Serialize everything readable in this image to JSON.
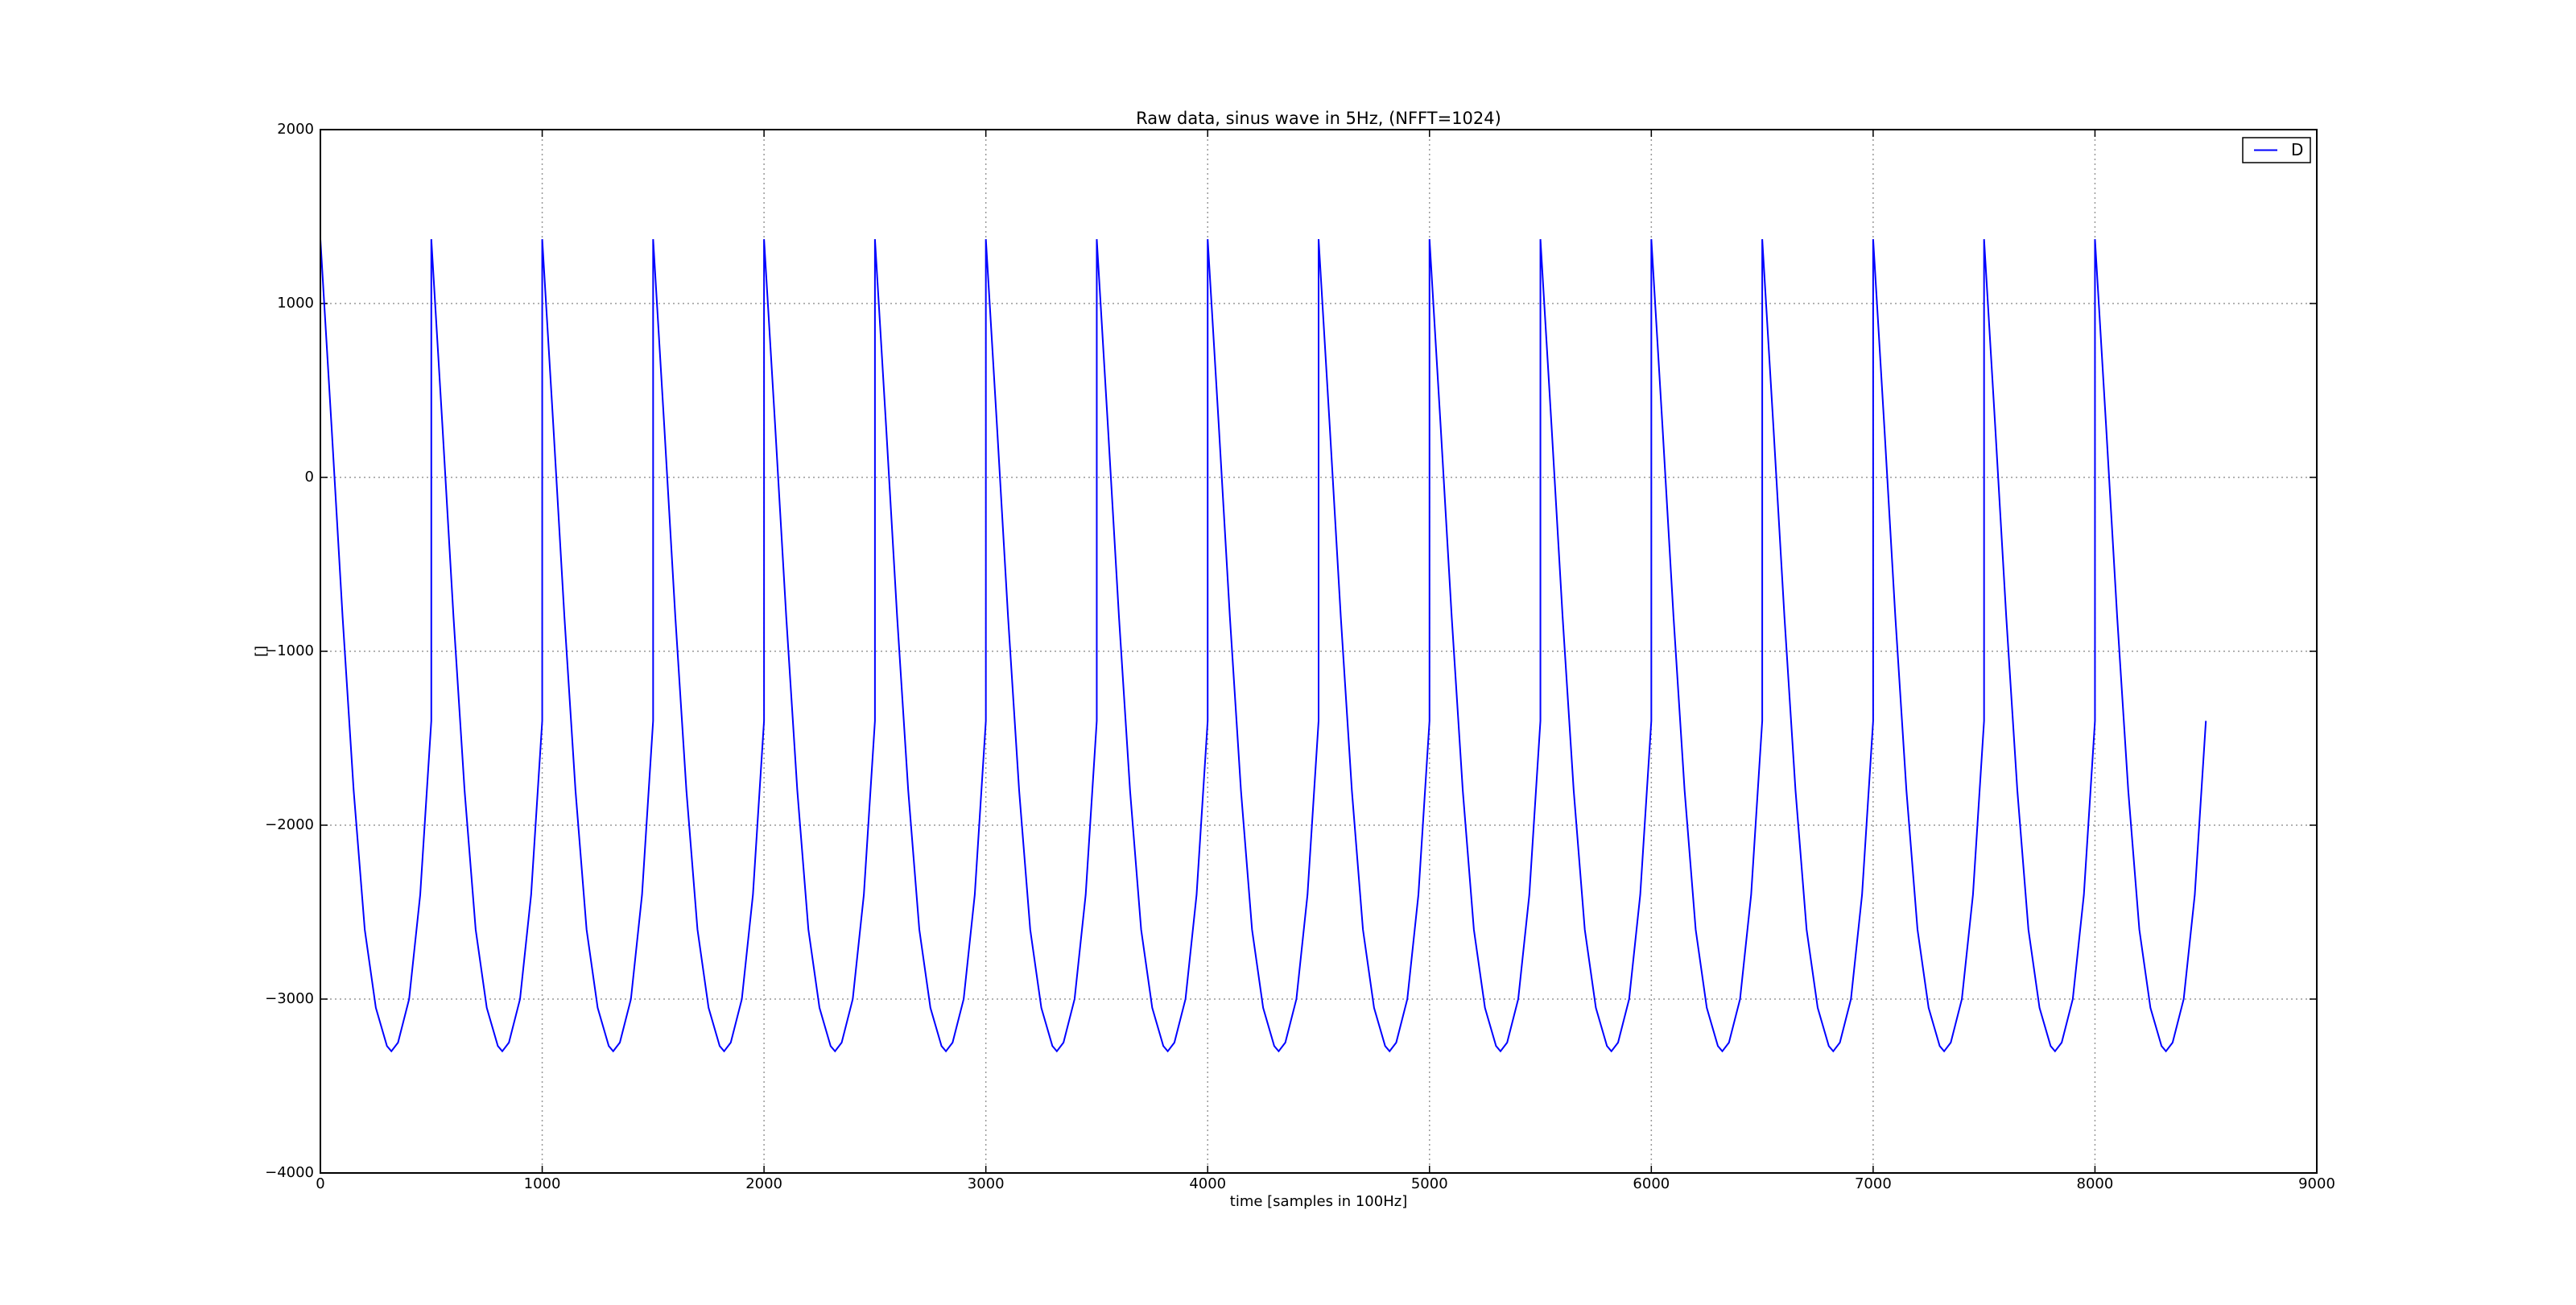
{
  "chart_data": {
    "type": "line",
    "title": "Raw data, sinus wave in 5Hz, (NFFT=1024)",
    "x_label": "time [samples in 100Hz]",
    "y_label": "[]",
    "x": [
      0,
      50,
      100,
      150,
      200,
      250,
      300,
      320,
      350,
      400,
      450,
      500,
      500,
      550,
      600,
      650,
      700,
      750,
      800,
      820,
      850,
      900,
      950,
      1000,
      1000,
      1050,
      1100,
      1150,
      1200,
      1250,
      1300,
      1320,
      1350,
      1400,
      1450,
      1500,
      1500,
      1550,
      1600,
      1650,
      1700,
      1750,
      1800,
      1820,
      1850,
      1900,
      1950,
      2000,
      2000,
      2050,
      2100,
      2150,
      2200,
      2250,
      2300,
      2320,
      2350,
      2400,
      2450,
      2500,
      2500,
      2550,
      2600,
      2650,
      2700,
      2750,
      2800,
      2820,
      2850,
      2900,
      2950,
      3000,
      3000,
      3050,
      3100,
      3150,
      3200,
      3250,
      3300,
      3320,
      3350,
      3400,
      3450,
      3500,
      3500,
      3550,
      3600,
      3650,
      3700,
      3750,
      3800,
      3820,
      3850,
      3900,
      3950,
      4000,
      4000,
      4050,
      4100,
      4150,
      4200,
      4250,
      4300,
      4320,
      4350,
      4400,
      4450,
      4500,
      4500,
      4550,
      4600,
      4650,
      4700,
      4750,
      4800,
      4820,
      4850,
      4900,
      4950,
      5000,
      5000,
      5050,
      5100,
      5150,
      5200,
      5250,
      5300,
      5320,
      5350,
      5400,
      5450,
      5500,
      5500,
      5550,
      5600,
      5650,
      5700,
      5750,
      5800,
      5820,
      5850,
      5900,
      5950,
      6000,
      6000,
      6050,
      6100,
      6150,
      6200,
      6250,
      6300,
      6320,
      6350,
      6400,
      6450,
      6500,
      6500,
      6550,
      6600,
      6650,
      6700,
      6750,
      6800,
      6820,
      6850,
      6900,
      6950,
      7000,
      7000,
      7050,
      7100,
      7150,
      7200,
      7250,
      7300,
      7320,
      7350,
      7400,
      7450,
      7500,
      7500,
      7550,
      7600,
      7650,
      7700,
      7750,
      7800,
      7820,
      7850,
      7900,
      7950,
      8000,
      8000,
      8050,
      8100,
      8150,
      8200,
      8250,
      8300,
      8320,
      8350,
      8400,
      8450,
      8500
    ],
    "series": [
      {
        "name": "D",
        "color": "#0000ff",
        "values": [
          1370,
          300,
          -800,
          -1800,
          -2600,
          -3050,
          -3270,
          -3300,
          -3250,
          -3000,
          -2400,
          -1400,
          1370,
          300,
          -800,
          -1800,
          -2600,
          -3050,
          -3270,
          -3300,
          -3250,
          -3000,
          -2400,
          -1400,
          1370,
          300,
          -800,
          -1800,
          -2600,
          -3050,
          -3270,
          -3300,
          -3250,
          -3000,
          -2400,
          -1400,
          1370,
          300,
          -800,
          -1800,
          -2600,
          -3050,
          -3270,
          -3300,
          -3250,
          -3000,
          -2400,
          -1400,
          1370,
          300,
          -800,
          -1800,
          -2600,
          -3050,
          -3270,
          -3300,
          -3250,
          -3000,
          -2400,
          -1400,
          1370,
          300,
          -800,
          -1800,
          -2600,
          -3050,
          -3270,
          -3300,
          -3250,
          -3000,
          -2400,
          -1400,
          1370,
          300,
          -800,
          -1800,
          -2600,
          -3050,
          -3270,
          -3300,
          -3250,
          -3000,
          -2400,
          -1400,
          1370,
          300,
          -800,
          -1800,
          -2600,
          -3050,
          -3270,
          -3300,
          -3250,
          -3000,
          -2400,
          -1400,
          1370,
          300,
          -800,
          -1800,
          -2600,
          -3050,
          -3270,
          -3300,
          -3250,
          -3000,
          -2400,
          -1400,
          1370,
          300,
          -800,
          -1800,
          -2600,
          -3050,
          -3270,
          -3300,
          -3250,
          -3000,
          -2400,
          -1400,
          1370,
          300,
          -800,
          -1800,
          -2600,
          -3050,
          -3270,
          -3300,
          -3250,
          -3000,
          -2400,
          -1400,
          1370,
          300,
          -800,
          -1800,
          -2600,
          -3050,
          -3270,
          -3300,
          -3250,
          -3000,
          -2400,
          -1400,
          1370,
          300,
          -800,
          -1800,
          -2600,
          -3050,
          -3270,
          -3300,
          -3250,
          -3000,
          -2400,
          -1400,
          1370,
          300,
          -800,
          -1800,
          -2600,
          -3050,
          -3270,
          -3300,
          -3250,
          -3000,
          -2400,
          -1400,
          1370,
          300,
          -800,
          -1800,
          -2600,
          -3050,
          -3270,
          -3300,
          -3250,
          -3000,
          -2400,
          -1400,
          1370,
          300,
          -800,
          -1800,
          -2600,
          -3050,
          -3270,
          -3300,
          -3250,
          -3000,
          -2400,
          -1400,
          1370,
          300,
          -800,
          -1800,
          -2600,
          -3050,
          -3270,
          -3300,
          -3250,
          -3000,
          -2400,
          -1400
        ]
      }
    ],
    "xlim": [
      0,
      9000
    ],
    "xticks": [
      0,
      1000,
      2000,
      3000,
      4000,
      5000,
      6000,
      7000,
      8000,
      9000
    ],
    "ylim": [
      -4000,
      2000
    ],
    "yticks": [
      {
        "value": -4000,
        "label": "−4000"
      },
      {
        "value": -3000,
        "label": "−3000"
      },
      {
        "value": -2000,
        "label": "−2000"
      },
      {
        "value": -1000,
        "label": "−1000"
      },
      0,
      1000,
      2000
    ],
    "grid": true,
    "legend": "upper right"
  }
}
